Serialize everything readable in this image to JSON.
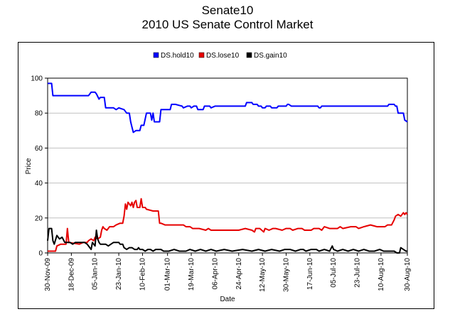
{
  "chart_data": {
    "type": "line",
    "title": "Senate10",
    "subtitle": "2010 US Senate Control Market",
    "xlabel": "Date",
    "ylabel": "Price",
    "ylim": [
      0,
      100
    ],
    "yticks": [
      0,
      20,
      40,
      60,
      80,
      100
    ],
    "grid": true,
    "legend_position": "top",
    "x_start": "2009-11-30",
    "x_end": "2010-08-30",
    "xtick_labels": [
      "30-Nov-09",
      "18-Dec-09",
      "05-Jan-10",
      "23-Jan-10",
      "10-Feb-10",
      "01-Mar-10",
      "19-Mar-10",
      "06-Apr-10",
      "24-Apr-10",
      "12-May-10",
      "30-May-10",
      "17-Jun-10",
      "05-Jul-10",
      "23-Jul-10",
      "10-Aug-10",
      "30-Aug-10"
    ],
    "xtick_days": [
      0,
      18,
      36,
      54,
      72,
      91,
      109,
      127,
      145,
      163,
      181,
      199,
      217,
      235,
      253,
      273
    ],
    "series": [
      {
        "name": "DS.hold10",
        "color": "#0000ff",
        "points": [
          [
            0,
            97
          ],
          [
            3,
            97
          ],
          [
            4,
            90
          ],
          [
            10,
            90
          ],
          [
            20,
            90
          ],
          [
            31,
            90
          ],
          [
            33,
            92
          ],
          [
            36,
            92
          ],
          [
            37,
            91
          ],
          [
            39,
            88
          ],
          [
            40,
            89
          ],
          [
            43,
            89
          ],
          [
            44,
            83
          ],
          [
            50,
            83
          ],
          [
            52,
            82
          ],
          [
            54,
            83
          ],
          [
            58,
            82
          ],
          [
            60,
            80
          ],
          [
            62,
            80
          ],
          [
            63,
            75
          ],
          [
            64,
            72
          ],
          [
            65,
            69
          ],
          [
            67,
            70
          ],
          [
            70,
            70
          ],
          [
            71,
            73
          ],
          [
            73,
            73
          ],
          [
            75,
            80
          ],
          [
            78,
            80
          ],
          [
            79,
            76
          ],
          [
            80,
            80
          ],
          [
            81,
            75
          ],
          [
            85,
            75
          ],
          [
            86,
            82
          ],
          [
            93,
            82
          ],
          [
            94,
            85
          ],
          [
            97,
            85
          ],
          [
            102,
            84
          ],
          [
            103,
            83
          ],
          [
            106,
            84
          ],
          [
            108,
            84
          ],
          [
            109,
            83
          ],
          [
            111,
            84
          ],
          [
            113,
            84
          ],
          [
            114,
            82
          ],
          [
            118,
            82
          ],
          [
            119,
            84
          ],
          [
            123,
            84
          ],
          [
            124,
            83
          ],
          [
            127,
            84
          ],
          [
            135,
            84
          ],
          [
            145,
            84
          ],
          [
            150,
            84
          ],
          [
            151,
            86
          ],
          [
            155,
            86
          ],
          [
            156,
            85
          ],
          [
            159,
            85
          ],
          [
            160,
            84
          ],
          [
            162,
            84
          ],
          [
            163,
            83
          ],
          [
            165,
            83
          ],
          [
            166,
            84
          ],
          [
            169,
            84
          ],
          [
            170,
            83
          ],
          [
            174,
            83
          ],
          [
            175,
            84
          ],
          [
            181,
            84
          ],
          [
            182,
            85
          ],
          [
            183,
            85
          ],
          [
            185,
            84
          ],
          [
            190,
            84
          ],
          [
            199,
            84
          ],
          [
            205,
            84
          ],
          [
            206,
            83
          ],
          [
            207,
            83
          ],
          [
            208,
            84
          ],
          [
            210,
            84
          ],
          [
            258,
            84
          ],
          [
            259,
            85
          ],
          [
            263,
            85
          ],
          [
            264,
            84
          ],
          [
            265,
            84
          ],
          [
            266,
            80
          ],
          [
            270,
            80
          ],
          [
            271,
            76
          ],
          [
            273,
            75
          ]
        ]
      },
      {
        "name": "DS.lose10",
        "color": "#e60000",
        "points": [
          [
            0,
            1
          ],
          [
            6,
            1
          ],
          [
            7,
            4
          ],
          [
            10,
            5
          ],
          [
            14,
            5
          ],
          [
            15,
            14
          ],
          [
            16,
            6
          ],
          [
            24,
            5
          ],
          [
            27,
            6
          ],
          [
            30,
            6
          ],
          [
            31,
            7
          ],
          [
            33,
            8
          ],
          [
            35,
            7
          ],
          [
            36,
            9
          ],
          [
            38,
            8
          ],
          [
            40,
            9
          ],
          [
            41,
            13
          ],
          [
            42,
            15
          ],
          [
            43,
            14
          ],
          [
            45,
            13
          ],
          [
            47,
            15
          ],
          [
            50,
            15
          ],
          [
            52,
            16
          ],
          [
            55,
            17
          ],
          [
            57,
            17
          ],
          [
            58,
            21
          ],
          [
            59,
            28
          ],
          [
            60,
            25
          ],
          [
            61,
            29
          ],
          [
            63,
            27
          ],
          [
            64,
            29
          ],
          [
            65,
            26
          ],
          [
            66,
            29
          ],
          [
            67,
            30
          ],
          [
            68,
            26
          ],
          [
            70,
            26
          ],
          [
            71,
            31
          ],
          [
            72,
            26
          ],
          [
            74,
            26
          ],
          [
            75,
            25
          ],
          [
            80,
            24
          ],
          [
            84,
            24
          ],
          [
            85,
            17
          ],
          [
            86,
            17
          ],
          [
            89,
            16
          ],
          [
            95,
            16
          ],
          [
            103,
            16
          ],
          [
            105,
            15
          ],
          [
            108,
            15
          ],
          [
            110,
            14
          ],
          [
            115,
            14
          ],
          [
            120,
            13
          ],
          [
            122,
            14
          ],
          [
            124,
            13
          ],
          [
            130,
            13
          ],
          [
            145,
            13
          ],
          [
            150,
            14
          ],
          [
            155,
            13
          ],
          [
            157,
            12
          ],
          [
            158,
            14
          ],
          [
            161,
            14
          ],
          [
            164,
            12
          ],
          [
            165,
            14
          ],
          [
            168,
            13
          ],
          [
            171,
            14
          ],
          [
            173,
            14
          ],
          [
            178,
            13
          ],
          [
            181,
            14
          ],
          [
            184,
            14
          ],
          [
            186,
            13
          ],
          [
            190,
            14
          ],
          [
            193,
            14
          ],
          [
            195,
            13
          ],
          [
            200,
            13
          ],
          [
            202,
            14
          ],
          [
            206,
            14
          ],
          [
            208,
            13
          ],
          [
            210,
            15
          ],
          [
            214,
            14
          ],
          [
            220,
            14
          ],
          [
            222,
            15
          ],
          [
            224,
            14
          ],
          [
            230,
            15
          ],
          [
            234,
            15
          ],
          [
            236,
            14
          ],
          [
            240,
            15
          ],
          [
            245,
            16
          ],
          [
            250,
            15
          ],
          [
            256,
            15
          ],
          [
            258,
            16
          ],
          [
            261,
            16
          ],
          [
            263,
            19
          ],
          [
            264,
            21
          ],
          [
            266,
            22
          ],
          [
            268,
            21
          ],
          [
            270,
            23
          ],
          [
            271,
            22
          ],
          [
            272,
            23
          ],
          [
            273,
            22
          ]
        ]
      },
      {
        "name": "DS.gain10",
        "color": "#000000",
        "points": [
          [
            0,
            7
          ],
          [
            1,
            14
          ],
          [
            3,
            14
          ],
          [
            4,
            7
          ],
          [
            5,
            5
          ],
          [
            7,
            10
          ],
          [
            9,
            8
          ],
          [
            11,
            9
          ],
          [
            13,
            6
          ],
          [
            17,
            6
          ],
          [
            19,
            5
          ],
          [
            21,
            6
          ],
          [
            28,
            6
          ],
          [
            30,
            5
          ],
          [
            33,
            2
          ],
          [
            34,
            6
          ],
          [
            36,
            4
          ],
          [
            37,
            13
          ],
          [
            38,
            8
          ],
          [
            39,
            6
          ],
          [
            40,
            5
          ],
          [
            44,
            5
          ],
          [
            46,
            4
          ],
          [
            48,
            5
          ],
          [
            50,
            6
          ],
          [
            54,
            6
          ],
          [
            55,
            5
          ],
          [
            57,
            5
          ],
          [
            58,
            3
          ],
          [
            60,
            2
          ],
          [
            62,
            3
          ],
          [
            64,
            3
          ],
          [
            66,
            2
          ],
          [
            68,
            2
          ],
          [
            69,
            3
          ],
          [
            70,
            2
          ],
          [
            72,
            2
          ],
          [
            74,
            1
          ],
          [
            76,
            2
          ],
          [
            78,
            2
          ],
          [
            80,
            1
          ],
          [
            82,
            2
          ],
          [
            86,
            2
          ],
          [
            88,
            1
          ],
          [
            92,
            1
          ],
          [
            96,
            2
          ],
          [
            100,
            1
          ],
          [
            105,
            1
          ],
          [
            108,
            2
          ],
          [
            112,
            1
          ],
          [
            116,
            2
          ],
          [
            120,
            1
          ],
          [
            124,
            2
          ],
          [
            128,
            1
          ],
          [
            134,
            2
          ],
          [
            140,
            1
          ],
          [
            148,
            2
          ],
          [
            155,
            1
          ],
          [
            160,
            2
          ],
          [
            165,
            1
          ],
          [
            170,
            2
          ],
          [
            176,
            1
          ],
          [
            180,
            2
          ],
          [
            184,
            2
          ],
          [
            188,
            1
          ],
          [
            192,
            2
          ],
          [
            194,
            2
          ],
          [
            196,
            1
          ],
          [
            200,
            2
          ],
          [
            204,
            2
          ],
          [
            206,
            1
          ],
          [
            210,
            2
          ],
          [
            214,
            1
          ],
          [
            216,
            4
          ],
          [
            217,
            2
          ],
          [
            220,
            1
          ],
          [
            224,
            2
          ],
          [
            228,
            1
          ],
          [
            232,
            2
          ],
          [
            236,
            1
          ],
          [
            240,
            2
          ],
          [
            244,
            1
          ],
          [
            248,
            1
          ],
          [
            252,
            2
          ],
          [
            255,
            1
          ],
          [
            260,
            1
          ],
          [
            263,
            1
          ],
          [
            265,
            0
          ],
          [
            267,
            0
          ],
          [
            268,
            3
          ],
          [
            270,
            2
          ],
          [
            272,
            1
          ],
          [
            273,
            1
          ]
        ]
      }
    ]
  }
}
